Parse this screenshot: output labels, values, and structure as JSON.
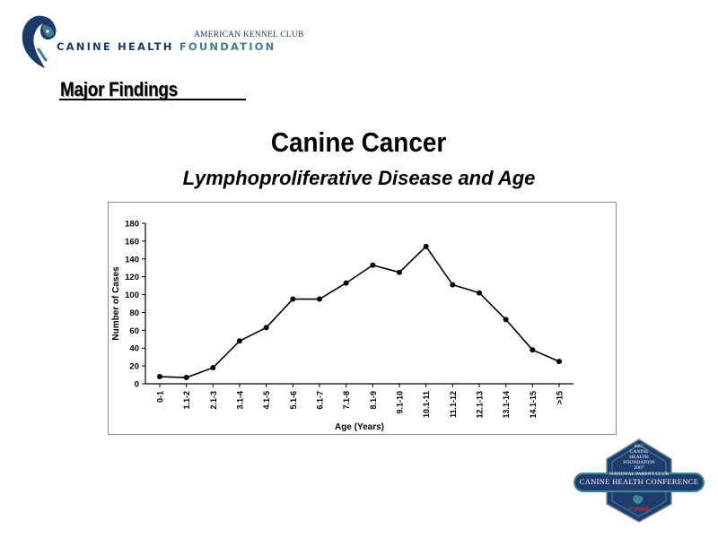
{
  "logo": {
    "top_text": "AMERICAN KENNEL CLUB",
    "main_text_a": "CANINE HEALTH ",
    "main_text_b": "FOUNDATION",
    "colors": {
      "navy": "#1b3a6b",
      "teal": "#3f7f8c"
    }
  },
  "section": {
    "title": "Major Findings"
  },
  "chart_data": {
    "type": "line",
    "title": "Canine Cancer",
    "subtitle": "Lymphoproliferative Disease and Age",
    "xlabel": "Age (Years)",
    "ylabel": "Number of Cases",
    "ylim": [
      0,
      180
    ],
    "yticks": [
      0,
      20,
      40,
      60,
      80,
      100,
      120,
      140,
      160,
      180
    ],
    "categories": [
      "0-1",
      "1.1-2",
      "2.1-3",
      "3.1-4",
      "4.1-5",
      "5.1-6",
      "6.1-7",
      "7.1-8",
      "8.1-9",
      "9.1-10",
      "10.1-11",
      "11.1-12",
      "12.1-13",
      "13.1-14",
      "14.1-15",
      ">15"
    ],
    "values": [
      8,
      7,
      18,
      48,
      63,
      95,
      95,
      113,
      133,
      125,
      154,
      111,
      102,
      72,
      38,
      25
    ],
    "grid": false,
    "legend": "none",
    "line_color": "#000000"
  },
  "badge": {
    "line1": "AKC",
    "line2": "CANINE",
    "line3": "HEALTH",
    "line4": "FOUNDATION",
    "line5": "2007",
    "line6": "NATIONAL PARENT CLUB",
    "main": "CANINE HEALTH CONFERENCE",
    "sponsor": "PURINA",
    "colors": {
      "navy": "#1f3c6e",
      "teal": "#3f8a92"
    }
  }
}
